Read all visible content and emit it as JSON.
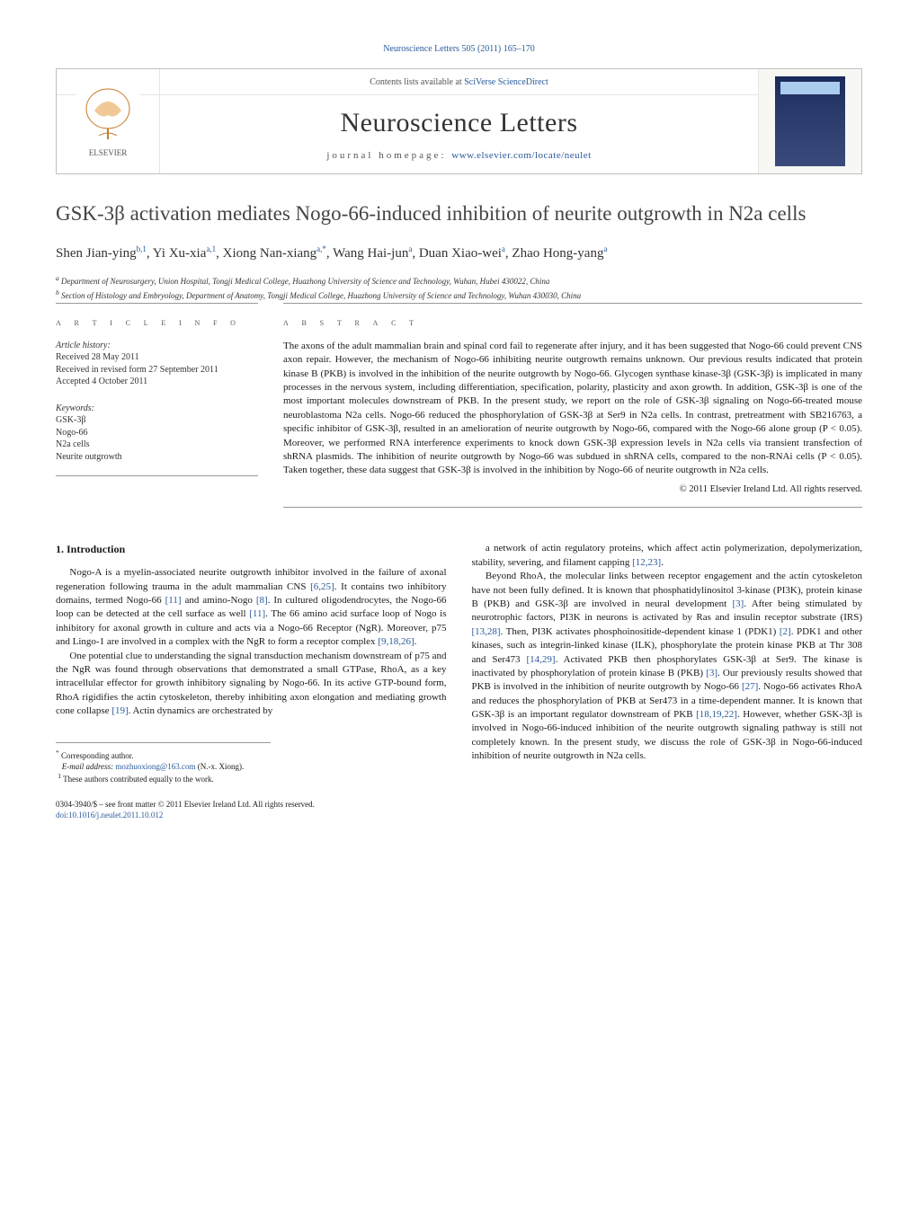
{
  "running_head": "Neuroscience Letters 505 (2011) 165–170",
  "header": {
    "contents_line_prefix": "Contents lists available at ",
    "contents_link": "SciVerse ScienceDirect",
    "journal": "Neuroscience Letters",
    "homepage_label": "journal homepage: ",
    "homepage_url": "www.elsevier.com/locate/neulet",
    "publisher_name": "ELSEVIER"
  },
  "title": "GSK-3β activation mediates Nogo-66-induced inhibition of neurite outgrowth in N2a cells",
  "authors_html": "Shen Jian-ying",
  "author_list": [
    {
      "name": "Shen Jian-ying",
      "marks": "b,1"
    },
    {
      "name": "Yi Xu-xia",
      "marks": "a,1"
    },
    {
      "name": "Xiong Nan-xiang",
      "marks": "a,*"
    },
    {
      "name": "Wang Hai-jun",
      "marks": "a"
    },
    {
      "name": "Duan Xiao-wei",
      "marks": "a"
    },
    {
      "name": "Zhao Hong-yang",
      "marks": "a"
    }
  ],
  "affiliations": {
    "a": "Department of Neurosurgery, Union Hospital, Tongji Medical College, Huazhong University of Science and Technology, Wuhan, Hubei 430022, China",
    "b": "Section of Histology and Embryology, Department of Anatomy, Tongji Medical College, Huazhong University of Science and Technology, Wuhan 430030, China"
  },
  "article_info_label": "a r t i c l e   i n f o",
  "abstract_label": "a b s t r a c t",
  "history": {
    "label": "Article history:",
    "received": "Received 28 May 2011",
    "revised": "Received in revised form 27 September 2011",
    "accepted": "Accepted 4 October 2011"
  },
  "keywords": {
    "label": "Keywords:",
    "items": [
      "GSK-3β",
      "Nogo-66",
      "N2a cells",
      "Neurite outgrowth"
    ]
  },
  "abstract": "The axons of the adult mammalian brain and spinal cord fail to regenerate after injury, and it has been suggested that Nogo-66 could prevent CNS axon repair. However, the mechanism of Nogo-66 inhibiting neurite outgrowth remains unknown. Our previous results indicated that protein kinase B (PKB) is involved in the inhibition of the neurite outgrowth by Nogo-66. Glycogen synthase kinase-3β (GSK-3β) is implicated in many processes in the nervous system, including differentiation, specification, polarity, plasticity and axon growth. In addition, GSK-3β is one of the most important molecules downstream of PKB. In the present study, we report on the role of GSK-3β signaling on Nogo-66-treated mouse neuroblastoma N2a cells. Nogo-66 reduced the phosphorylation of GSK-3β at Ser9 in N2a cells. In contrast, pretreatment with SB216763, a specific inhibitor of GSK-3β, resulted in an amelioration of neurite outgrowth by Nogo-66, compared with the Nogo-66 alone group (P < 0.05). Moreover, we performed RNA interference experiments to knock down GSK-3β expression levels in N2a cells via transient transfection of shRNA plasmids. The inhibition of neurite outgrowth by Nogo-66 was subdued in shRNA cells, compared to the non-RNAi cells (P < 0.05). Taken together, these data suggest that GSK-3β is involved in the inhibition by Nogo-66 of neurite outgrowth in N2a cells.",
  "copyright": "© 2011 Elsevier Ireland Ltd. All rights reserved.",
  "intro_heading": "1. Introduction",
  "intro_paras": [
    "Nogo-A is a myelin-associated neurite outgrowth inhibitor involved in the failure of axonal regeneration following trauma in the adult mammalian CNS [6,25]. It contains two inhibitory domains, termed Nogo-66 [11] and amino-Nogo [8]. In cultured oligodendrocytes, the Nogo-66 loop can be detected at the cell surface as well [11]. The 66 amino acid surface loop of Nogo is inhibitory for axonal growth in culture and acts via a Nogo-66 Receptor (NgR). Moreover, p75 and Lingo-1 are involved in a complex with the NgR to form a receptor complex [9,18,26].",
    "One potential clue to understanding the signal transduction mechanism downstream of p75 and the NgR was found through observations that demonstrated a small GTPase, RhoA, as a key intracellular effector for growth inhibitory signaling by Nogo-66. In its active GTP-bound form, RhoA rigidifies the actin cytoskeleton, thereby inhibiting axon elongation and mediating growth cone collapse [19]. Actin dynamics are orchestrated by"
  ],
  "col2_paras": [
    "a network of actin regulatory proteins, which affect actin polymerization, depolymerization, stability, severing, and filament capping [12,23].",
    "Beyond RhoA, the molecular links between receptor engagement and the actin cytoskeleton have not been fully defined. It is known that phosphatidylinositol 3-kinase (PI3K), protein kinase B (PKB) and GSK-3β are involved in neural development [3]. After being stimulated by neurotrophic factors, PI3K in neurons is activated by Ras and insulin receptor substrate (IRS) [13,28]. Then, PI3K activates phosphoinositide-dependent kinase 1 (PDK1) [2]. PDK1 and other kinases, such as integrin-linked kinase (ILK), phosphorylate the protein kinase PKB at Thr 308 and Ser473 [14,29]. Activated PKB then phosphorylates GSK-3β at Ser9. The kinase is inactivated by phosphorylation of protein kinase B (PKB) [3]. Our previously results showed that PKB is involved in the inhibition of neurite outgrowth by Nogo-66 [27]. Nogo-66 activates RhoA and reduces the phosphorylation of PKB at Ser473 in a time-dependent manner. It is known that GSK-3β is an important regulator downstream of PKB [18,19,22]. However, whether GSK-3β is involved in Nogo-66-induced inhibition of the neurite outgrowth signaling pathway is still not completely known. In the present study, we discuss the role of GSK-3β in Nogo-66-induced inhibition of neurite outgrowth in N2a cells."
  ],
  "footnotes": {
    "corr": "Corresponding author.",
    "email_label": "E-mail address:",
    "email": "mozhuoxiong@163.com",
    "email_suffix": "(N.-x. Xiong).",
    "equal": "These authors contributed equally to the work."
  },
  "footer": {
    "line1": "0304-3940/$ – see front matter © 2011 Elsevier Ireland Ltd. All rights reserved.",
    "doi": "doi:10.1016/j.neulet.2011.10.012"
  },
  "colors": {
    "link": "#2a5a9a",
    "text": "#1a1a1a",
    "rule": "#999999"
  }
}
